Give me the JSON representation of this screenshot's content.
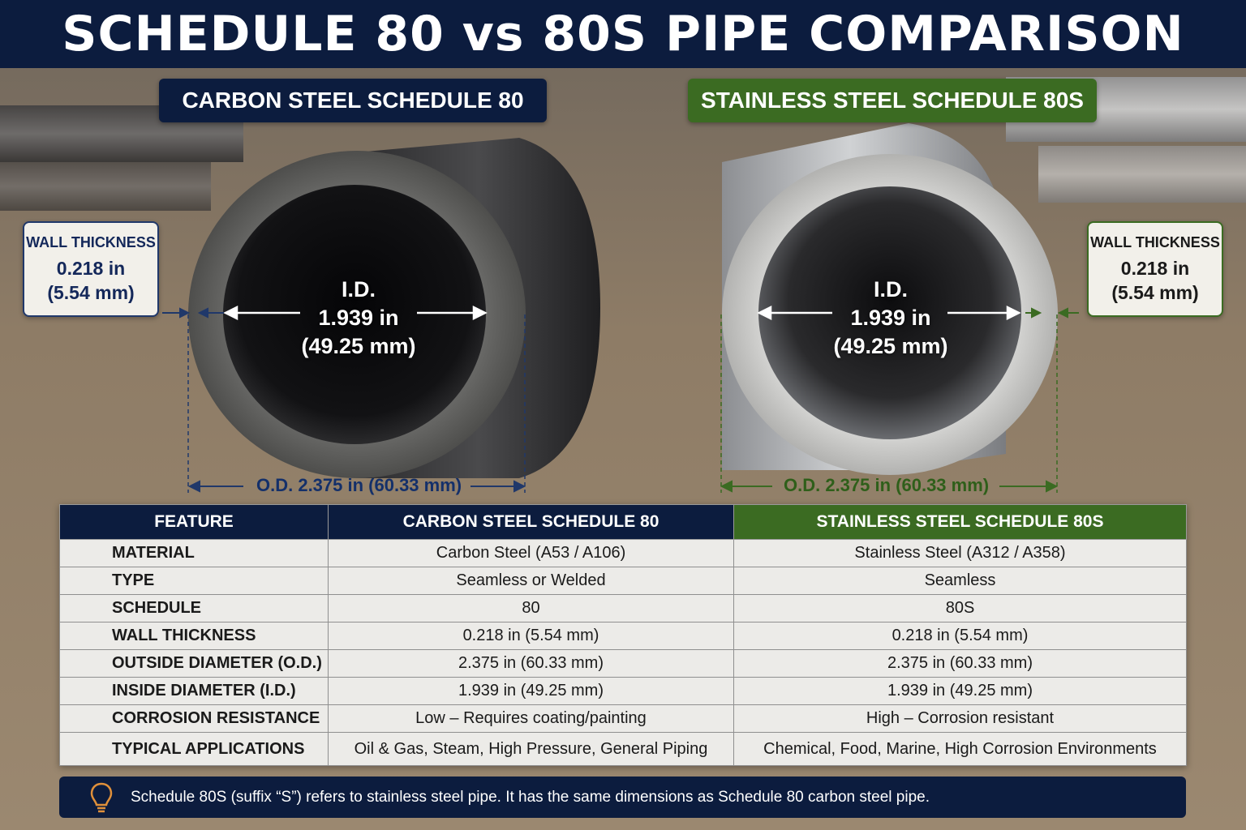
{
  "title": "SCHEDULE 80 vs 80S PIPE COMPARISON",
  "pipes": {
    "left": {
      "label": "CARBON STEEL SCHEDULE 80",
      "wall_heading": "WALL THICKNESS",
      "wall_in": "0.218 in",
      "wall_mm": "(5.54 mm)",
      "id_heading": "I.D.",
      "id_in": "1.939 in",
      "id_mm": "(49.25 mm)",
      "od": "O.D. 2.375 in (60.33 mm)",
      "color": "#0c1c3e"
    },
    "right": {
      "label": "STAINLESS STEEL SCHEDULE 80S",
      "wall_heading": "WALL THICKNESS",
      "wall_in": "0.218 in",
      "wall_mm": "(5.54 mm)",
      "id_heading": "I.D.",
      "id_in": "1.939 in",
      "id_mm": "(49.25 mm)",
      "od": "O.D. 2.375 in (60.33 mm)",
      "color": "#3b6b22"
    }
  },
  "table": {
    "headers": [
      "FEATURE",
      "CARBON STEEL SCHEDULE 80",
      "STAINLESS STEEL SCHEDULE 80S"
    ],
    "rows": [
      [
        "MATERIAL",
        "Carbon Steel (A53 / A106)",
        "Stainless Steel (A312 / A358)"
      ],
      [
        "TYPE",
        "Seamless or Welded",
        "Seamless"
      ],
      [
        "SCHEDULE",
        "80",
        "80S"
      ],
      [
        "WALL THICKNESS",
        "0.218 in (5.54 mm)",
        "0.218 in (5.54 mm)"
      ],
      [
        "OUTSIDE DIAMETER (O.D.)",
        "2.375 in (60.33 mm)",
        "2.375 in (60.33 mm)"
      ],
      [
        "INSIDE DIAMETER  (I.D.)",
        "1.939 in (49.25 mm)",
        "1.939 in (49.25 mm)"
      ],
      [
        "CORROSION RESISTANCE",
        "Low – Requires coating/painting",
        "High – Corrosion resistant"
      ],
      [
        "TYPICAL APPLICATIONS",
        "Oil & Gas, Steam, High Pressure, General Piping",
        "Chemical, Food, Marine, High Corrosion Environments"
      ]
    ]
  },
  "note": {
    "icon": "lightbulb-icon",
    "text": "Schedule 80S (suffix “S”) refers to stainless steel pipe. It has the same dimensions as Schedule 80 carbon steel pipe."
  }
}
